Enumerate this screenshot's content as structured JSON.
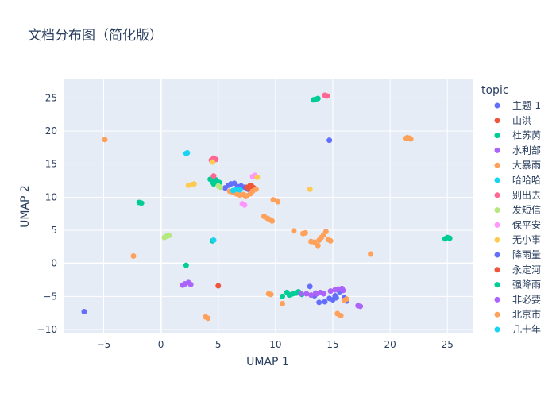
{
  "chart_data": {
    "type": "scatter",
    "title": "文档分布图（简化版）",
    "xlabel": "UMAP 1",
    "ylabel": "UMAP 2",
    "xlim": [
      -8.5,
      27.2
    ],
    "ylim": [
      -10.6,
      27.8
    ],
    "xticks": [
      -5,
      0,
      5,
      10,
      15,
      20,
      25
    ],
    "yticks": [
      -10,
      -5,
      0,
      5,
      10,
      15,
      20,
      25
    ],
    "grid": true,
    "legend": {
      "title": "topic",
      "position": "right"
    },
    "series": [
      {
        "name": "主题-1",
        "color": "#636efa",
        "points": [
          [
            14.7,
            18.6
          ],
          [
            5.6,
            11.4
          ],
          [
            5.9,
            11.8
          ],
          [
            6.1,
            12.0
          ],
          [
            6.4,
            12.1
          ],
          [
            6.7,
            11.6
          ],
          [
            7.0,
            11.7
          ],
          [
            7.3,
            11.5
          ],
          [
            7.6,
            11.2
          ],
          [
            13.0,
            -3.5
          ],
          [
            13.4,
            -4.9
          ],
          [
            13.8,
            -5.9
          ],
          [
            14.3,
            -5.8
          ],
          [
            14.7,
            -5.3
          ],
          [
            15.2,
            -4.9
          ],
          [
            15.6,
            -4.3
          ],
          [
            16.0,
            -5.2
          ],
          [
            16.2,
            -5.7
          ],
          [
            -6.7,
            -7.3
          ]
        ]
      },
      {
        "name": "山洪",
        "color": "#EF553B",
        "points": [
          [
            7.5,
            11.5
          ],
          [
            7.7,
            11.3
          ],
          [
            7.9,
            11.6
          ],
          [
            8.1,
            11.4
          ],
          [
            7.8,
            11.8
          ],
          [
            5.0,
            -3.4
          ]
        ]
      },
      {
        "name": "杜苏芮",
        "color": "#00cc96",
        "points": [
          [
            4.3,
            12.7
          ],
          [
            4.5,
            12.3
          ],
          [
            4.7,
            12.5
          ],
          [
            4.9,
            12.4
          ],
          [
            5.1,
            12.2
          ],
          [
            4.6,
            12.0
          ],
          [
            4.8,
            12.6
          ],
          [
            13.3,
            24.7
          ],
          [
            13.5,
            24.8
          ],
          [
            13.7,
            24.9
          ],
          [
            -1.9,
            9.2
          ],
          [
            -1.7,
            9.1
          ],
          [
            2.2,
            -0.3
          ],
          [
            4.5,
            3.4
          ],
          [
            10.6,
            -5.0
          ],
          [
            11.0,
            -4.4
          ],
          [
            11.5,
            -4.6
          ],
          [
            12.0,
            -4.3
          ],
          [
            12.3,
            -4.7
          ],
          [
            24.8,
            3.7
          ],
          [
            25.0,
            3.9
          ],
          [
            25.2,
            3.8
          ]
        ]
      },
      {
        "name": "水利部",
        "color": "#ab63fa",
        "points": [
          [
            1.9,
            -3.3
          ],
          [
            2.1,
            -3.1
          ],
          [
            2.4,
            -2.9
          ],
          [
            2.6,
            -3.2
          ],
          [
            12.2,
            -4.6
          ],
          [
            12.7,
            -4.6
          ],
          [
            13.1,
            -4.8
          ],
          [
            13.5,
            -4.5
          ],
          [
            13.9,
            -4.4
          ],
          [
            14.2,
            -4.6
          ],
          [
            14.8,
            -4.2
          ],
          [
            15.2,
            -4.0
          ],
          [
            15.5,
            -3.9
          ],
          [
            15.8,
            -3.8
          ],
          [
            17.2,
            -6.4
          ],
          [
            17.4,
            -6.5
          ]
        ]
      },
      {
        "name": "大暴雨",
        "color": "#FFA15A",
        "points": [
          [
            -4.9,
            18.7
          ],
          [
            21.4,
            18.9
          ],
          [
            21.7,
            18.9
          ],
          [
            21.5,
            19.0
          ],
          [
            21.8,
            18.8
          ],
          [
            6.0,
            10.9
          ],
          [
            6.3,
            10.7
          ],
          [
            6.6,
            10.5
          ],
          [
            6.9,
            10.3
          ],
          [
            7.2,
            10.4
          ],
          [
            7.5,
            10.2
          ],
          [
            7.8,
            10.5
          ],
          [
            8.0,
            10.9
          ],
          [
            8.3,
            11.2
          ],
          [
            9.8,
            9.6
          ],
          [
            10.2,
            9.3
          ],
          [
            9.0,
            7.1
          ],
          [
            9.3,
            6.8
          ],
          [
            9.5,
            6.6
          ],
          [
            9.7,
            6.4
          ],
          [
            11.6,
            4.9
          ],
          [
            12.4,
            4.5
          ],
          [
            12.6,
            4.6
          ],
          [
            13.1,
            3.3
          ],
          [
            13.4,
            3.2
          ],
          [
            13.8,
            3.5
          ],
          [
            14.0,
            3.9
          ],
          [
            14.2,
            4.3
          ],
          [
            14.4,
            4.8
          ],
          [
            14.6,
            3.6
          ],
          [
            14.8,
            3.4
          ],
          [
            13.7,
            2.7
          ],
          [
            18.3,
            1.4
          ],
          [
            -2.4,
            1.1
          ],
          [
            9.4,
            -4.6
          ],
          [
            9.6,
            -4.7
          ],
          [
            10.6,
            -6.1
          ],
          [
            15.4,
            -7.6
          ],
          [
            15.7,
            -7.9
          ],
          [
            16.2,
            -5.4
          ],
          [
            3.9,
            -8.1
          ],
          [
            4.1,
            -8.3
          ]
        ]
      },
      {
        "name": "哈哈哈",
        "color": "#19d3f3",
        "points": [
          [
            2.2,
            16.6
          ],
          [
            2.3,
            16.7
          ],
          [
            6.3,
            11.0
          ],
          [
            6.6,
            11.2
          ],
          [
            6.9,
            11.1
          ]
        ]
      },
      {
        "name": "别出去",
        "color": "#FF6692",
        "points": [
          [
            4.4,
            15.6
          ],
          [
            4.6,
            15.9
          ],
          [
            4.8,
            15.7
          ],
          [
            14.3,
            25.4
          ],
          [
            14.5,
            25.3
          ],
          [
            4.6,
            13.2
          ]
        ]
      },
      {
        "name": "发短信",
        "color": "#B6E880",
        "points": [
          [
            0.3,
            3.9
          ],
          [
            0.5,
            4.1
          ],
          [
            0.7,
            4.2
          ],
          [
            5.0,
            11.7
          ],
          [
            5.2,
            11.5
          ]
        ]
      },
      {
        "name": "保平安",
        "color": "#FF97FF",
        "points": [
          [
            8.0,
            13.1
          ],
          [
            8.2,
            13.3
          ],
          [
            7.1,
            9.0
          ],
          [
            7.3,
            8.8
          ]
        ]
      },
      {
        "name": "无小事",
        "color": "#FECB52",
        "points": [
          [
            2.4,
            11.8
          ],
          [
            2.7,
            11.9
          ],
          [
            2.9,
            12.0
          ],
          [
            4.5,
            15.3
          ],
          [
            13.0,
            11.2
          ],
          [
            8.4,
            13.0
          ]
        ]
      },
      {
        "name": "降雨量",
        "color": "#636efa",
        "points": [
          [
            15.0,
            -5.5
          ],
          [
            15.3,
            -5.2
          ]
        ]
      },
      {
        "name": "永定河",
        "color": "#EF553B",
        "points": [
          [
            7.9,
            11.7
          ]
        ]
      },
      {
        "name": "强降雨",
        "color": "#00cc96",
        "points": [
          [
            11.2,
            -4.8
          ],
          [
            11.8,
            -4.5
          ]
        ]
      },
      {
        "name": "非必要",
        "color": "#ab63fa",
        "points": [
          [
            13.6,
            -4.6
          ],
          [
            15.9,
            -4.1
          ]
        ]
      },
      {
        "name": "北京市",
        "color": "#FFA15A",
        "points": [
          [
            16.0,
            -5.6
          ],
          [
            7.4,
            10.1
          ]
        ]
      },
      {
        "name": "几十年",
        "color": "#19d3f3",
        "points": [
          [
            4.6,
            3.5
          ]
        ]
      }
    ]
  }
}
